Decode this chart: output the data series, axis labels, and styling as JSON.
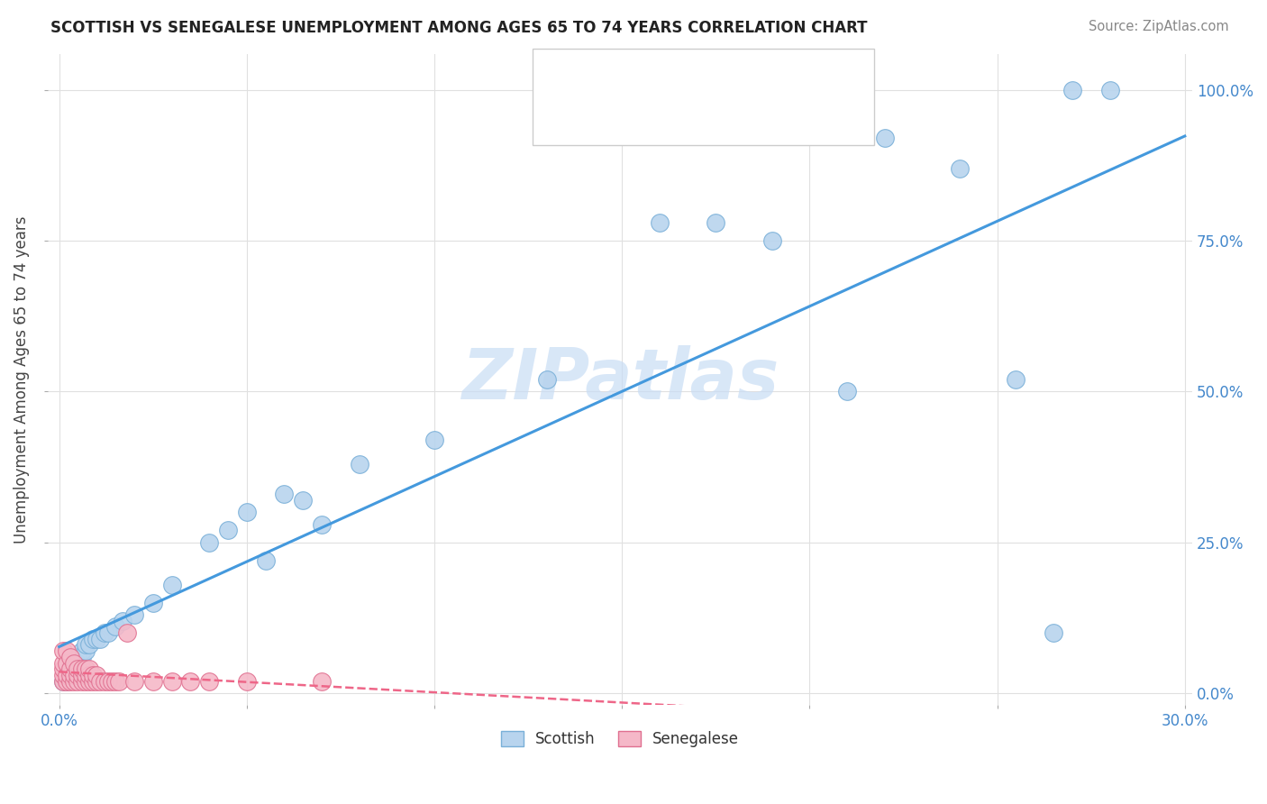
{
  "title": "SCOTTISH VS SENEGALESE UNEMPLOYMENT AMONG AGES 65 TO 74 YEARS CORRELATION CHART",
  "source": "Source: ZipAtlas.com",
  "ylabel": "Unemployment Among Ages 65 to 74 years",
  "background_color": "#ffffff",
  "grid_color": "#e0e0e0",
  "scottish_color": "#b8d4ee",
  "scottish_edge_color": "#7ab0d8",
  "senegalese_color": "#f5b8c8",
  "senegalese_edge_color": "#e07090",
  "scottish_line_color": "#4499dd",
  "senegalese_line_color": "#ee6688",
  "title_color": "#222222",
  "source_color": "#888888",
  "tick_label_color": "#4488cc",
  "ylabel_color": "#444444",
  "watermark_color": "#c8ddf5",
  "legend_text_color": "#222222",
  "legend_value_color": "#3366bb",
  "scot_x": [
    0.001,
    0.002,
    0.002,
    0.003,
    0.003,
    0.004,
    0.004,
    0.005,
    0.005,
    0.006,
    0.006,
    0.007,
    0.007,
    0.008,
    0.009,
    0.01,
    0.011,
    0.012,
    0.013,
    0.015,
    0.017,
    0.02,
    0.025,
    0.03,
    0.04,
    0.045,
    0.05,
    0.055,
    0.06,
    0.065,
    0.07,
    0.08,
    0.1,
    0.13,
    0.16,
    0.19,
    0.22,
    0.24,
    0.255,
    0.27,
    0.28,
    0.265,
    0.21,
    0.175
  ],
  "scot_y": [
    0.02,
    0.02,
    0.03,
    0.03,
    0.04,
    0.04,
    0.05,
    0.05,
    0.06,
    0.06,
    0.07,
    0.07,
    0.08,
    0.08,
    0.09,
    0.09,
    0.09,
    0.1,
    0.1,
    0.11,
    0.12,
    0.13,
    0.15,
    0.18,
    0.25,
    0.27,
    0.3,
    0.22,
    0.33,
    0.32,
    0.28,
    0.38,
    0.42,
    0.52,
    0.78,
    0.75,
    0.92,
    0.87,
    0.52,
    1.0,
    1.0,
    0.1,
    0.5,
    0.78
  ],
  "sene_x": [
    0.001,
    0.001,
    0.001,
    0.001,
    0.001,
    0.002,
    0.002,
    0.002,
    0.002,
    0.003,
    0.003,
    0.003,
    0.003,
    0.004,
    0.004,
    0.004,
    0.005,
    0.005,
    0.005,
    0.006,
    0.006,
    0.006,
    0.007,
    0.007,
    0.007,
    0.008,
    0.008,
    0.008,
    0.009,
    0.009,
    0.01,
    0.01,
    0.011,
    0.012,
    0.013,
    0.014,
    0.015,
    0.016,
    0.018,
    0.02,
    0.025,
    0.03,
    0.035,
    0.04,
    0.05,
    0.07
  ],
  "sene_y": [
    0.02,
    0.03,
    0.04,
    0.05,
    0.07,
    0.02,
    0.03,
    0.05,
    0.07,
    0.02,
    0.03,
    0.04,
    0.06,
    0.02,
    0.03,
    0.05,
    0.02,
    0.03,
    0.04,
    0.02,
    0.03,
    0.04,
    0.02,
    0.03,
    0.04,
    0.02,
    0.03,
    0.04,
    0.02,
    0.03,
    0.02,
    0.03,
    0.02,
    0.02,
    0.02,
    0.02,
    0.02,
    0.02,
    0.1,
    0.02,
    0.02,
    0.02,
    0.02,
    0.02,
    0.02,
    0.02
  ],
  "xlim": [
    -0.003,
    0.302
  ],
  "ylim": [
    -0.02,
    1.06
  ],
  "xticks": [
    0.0,
    0.05,
    0.1,
    0.15,
    0.2,
    0.25,
    0.3
  ],
  "yticks": [
    0.0,
    0.25,
    0.5,
    0.75,
    1.0
  ],
  "marker_size": 200
}
